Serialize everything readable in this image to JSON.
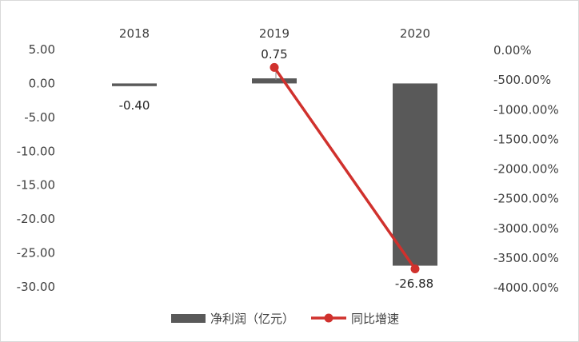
{
  "chart_data": {
    "type": "bar",
    "categories": [
      "2018",
      "2019",
      "2020"
    ],
    "series": [
      {
        "name": "净利润（亿元）",
        "type": "bar",
        "axis": "left",
        "values": [
          -0.4,
          0.75,
          -26.88
        ],
        "labels": [
          "-0.40",
          "0.75",
          "-26.88"
        ],
        "color": "#595959"
      },
      {
        "name": "同比增速",
        "type": "line",
        "axis": "right",
        "values": [
          null,
          -287.5,
          -3684.0
        ],
        "color": "#d0312d"
      }
    ],
    "left_axis": {
      "ylim": [
        -30,
        5
      ],
      "ticks": [
        5,
        0,
        -5,
        -10,
        -15,
        -20,
        -25,
        -30
      ],
      "tick_labels": [
        "5.00",
        "0.00",
        "-5.00",
        "-10.00",
        "-15.00",
        "-20.00",
        "-25.00",
        "-30.00"
      ]
    },
    "right_axis": {
      "ylim": [
        -4000,
        0
      ],
      "ticks": [
        0,
        -500,
        -1000,
        -1500,
        -2000,
        -2500,
        -3000,
        -3500,
        -4000
      ],
      "tick_labels": [
        "0.00%",
        "-500.00%",
        "-1000.00%",
        "-1500.00%",
        "-2000.00%",
        "-2500.00%",
        "-3000.00%",
        "-3500.00%",
        "-4000.00%"
      ]
    },
    "x_axis_position": "top",
    "grid": false,
    "legend_position": "bottom"
  }
}
